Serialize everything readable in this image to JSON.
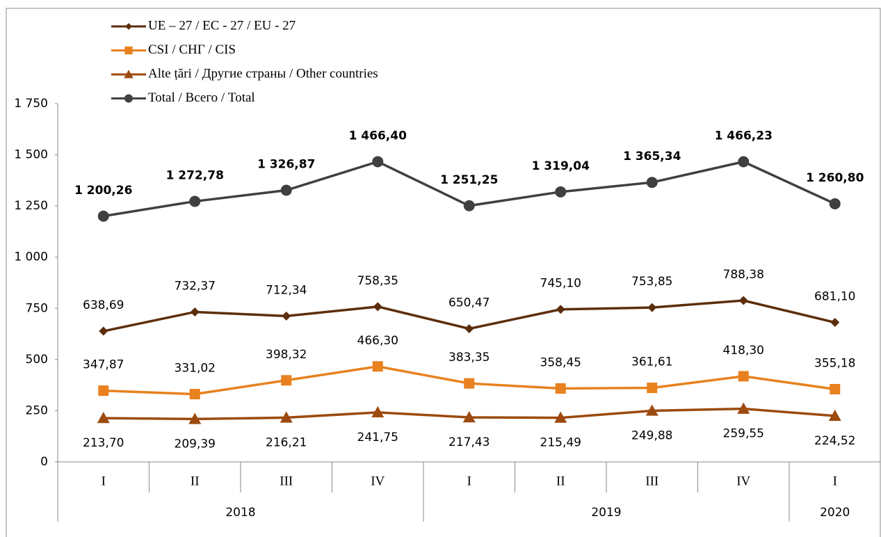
{
  "chart_data": {
    "type": "line",
    "categories": [
      "I",
      "II",
      "III",
      "IV",
      "I",
      "II",
      "III",
      "IV",
      "I"
    ],
    "years": [
      "2018",
      "2018",
      "2018",
      "2018",
      "2019",
      "2019",
      "2019",
      "2019",
      "2020"
    ],
    "ylim": [
      0,
      1750
    ],
    "yticks": [
      0,
      250,
      500,
      750,
      {
        "value": 1000,
        "label": "1 000"
      },
      {
        "value": 1250,
        "label": "1 250"
      },
      {
        "value": 1500,
        "label": "1 500"
      },
      {
        "value": 1750,
        "label": "1 750"
      }
    ],
    "grid": false,
    "legend": "top-left",
    "series": [
      {
        "name": "UE – 27 / ЕС - 27 / EU - 27",
        "color": "#5c2e0c",
        "marker": "diamond",
        "label_position": "above",
        "label_bold": false,
        "values": [
          638.69,
          732.37,
          712.34,
          758.35,
          650.47,
          745.1,
          753.85,
          788.38,
          681.1
        ],
        "value_labels": [
          "638,69",
          "732,37",
          "712,34",
          "758,35",
          "650,47",
          "745,10",
          "753,85",
          "788,38",
          "681,10"
        ]
      },
      {
        "name": "CSI / СНГ / CIS",
        "color": "#e8811e",
        "marker": "square",
        "label_position": "above",
        "label_bold": false,
        "values": [
          347.87,
          331.02,
          398.32,
          466.3,
          383.35,
          358.45,
          361.61,
          418.3,
          355.18
        ],
        "value_labels": [
          "347,87",
          "331,02",
          "398,32",
          "466,30",
          "383,35",
          "358,45",
          "361,61",
          "418,30",
          "355,18"
        ]
      },
      {
        "name": "Alte țări / Другие страны / Other countries",
        "color": "#9c4a0f",
        "marker": "triangle",
        "label_position": "below",
        "label_bold": false,
        "values": [
          213.7,
          209.39,
          216.21,
          241.75,
          217.43,
          215.49,
          249.88,
          259.55,
          224.52
        ],
        "value_labels": [
          "213,70",
          "209,39",
          "216,21",
          "241,75",
          "217,43",
          "215,49",
          "249,88",
          "259,55",
          "224,52"
        ]
      },
      {
        "name": "Total / Всего / Total",
        "color": "#404040",
        "marker": "circle",
        "label_position": "above",
        "label_bold": true,
        "values": [
          1200.26,
          1272.78,
          1326.87,
          1466.4,
          1251.25,
          1319.04,
          1365.34,
          1466.23,
          1260.8
        ],
        "value_labels": [
          "1 200,26",
          "1 272,78",
          "1 326,87",
          "1 466,40",
          "1 251,25",
          "1 319,04",
          "1 365,34",
          "1 466,23",
          "1 260,80"
        ]
      }
    ]
  }
}
